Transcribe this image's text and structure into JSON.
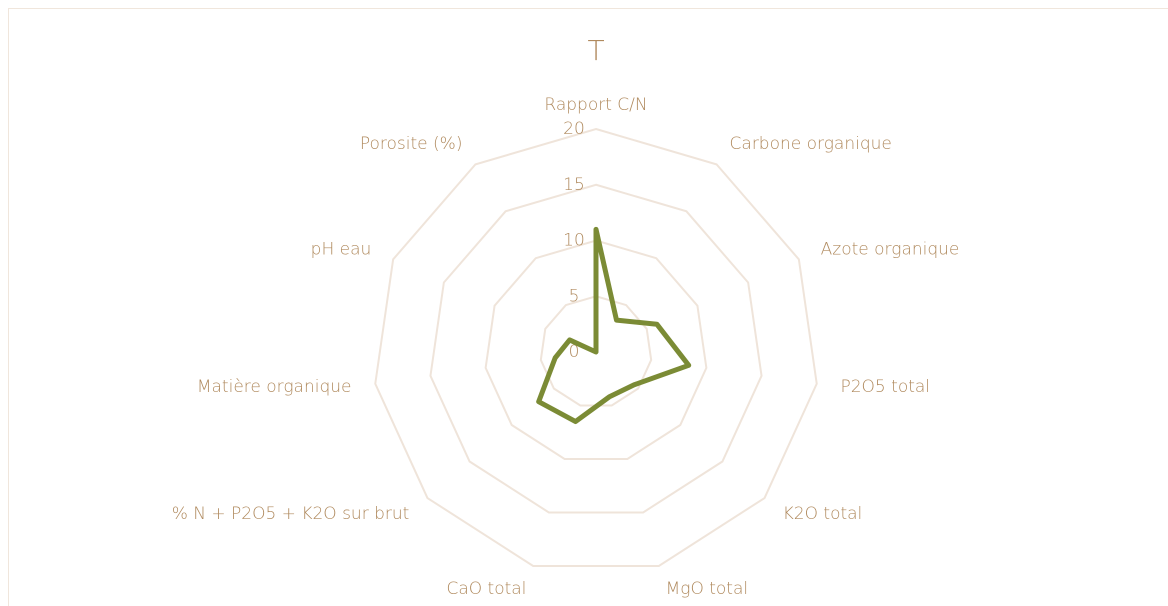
{
  "chart_data": {
    "type": "radar",
    "title": "T",
    "categories": [
      "Rapport C/N",
      "Carbone organique",
      "Azote organique",
      "P2O5 total",
      "K2O total",
      "MgO total",
      "CaO total",
      "% N + P2O5 + K2O sur brut",
      "Matière organique",
      "pH eau",
      "Porosite (%)"
    ],
    "values": [
      11,
      3.4,
      6,
      8.4,
      4.5,
      4.2,
      6.5,
      6.8,
      3.7,
      2.6,
      0
    ],
    "color": "#7b8b35",
    "ylim": [
      0,
      20
    ],
    "yticks": [
      0,
      5,
      10,
      15,
      20
    ],
    "grid": true
  }
}
